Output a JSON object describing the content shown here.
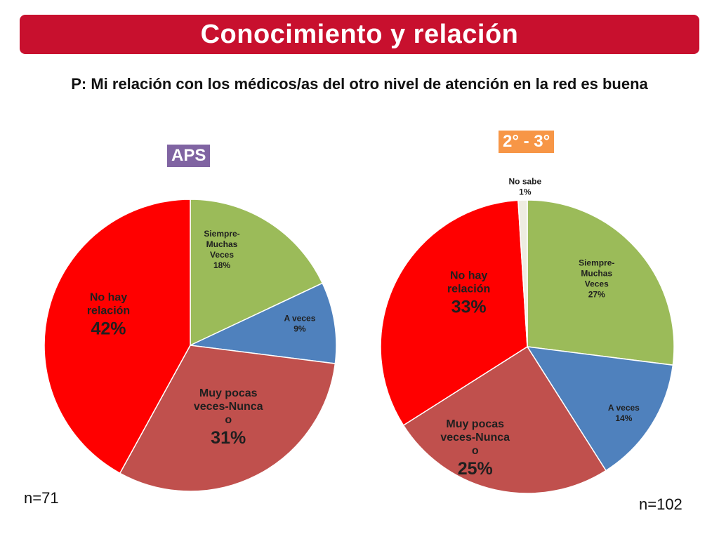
{
  "header": {
    "title": "Conocimiento y relación",
    "question": "P: Mi relación con los médicos/as del otro nivel de atención en la red es buena"
  },
  "colors": {
    "title_bar": "#c8102e",
    "siempre": "#9bbb59",
    "a_veces": "#4f81bd",
    "muy_pocas": "#c0504d",
    "no_hay": "#ff0000",
    "no_sabe": "#eeece1"
  },
  "chart_data": [
    {
      "type": "pie",
      "badge": "APS",
      "sample": "n=71",
      "slices": [
        {
          "label": [
            "Siempre-",
            "Muchas",
            "Veces"
          ],
          "value": 18,
          "pct": "18%",
          "color": "#9bbb59",
          "big": false
        },
        {
          "label": [
            "A veces"
          ],
          "value": 9,
          "pct": "9%",
          "color": "#4f81bd",
          "big": false
        },
        {
          "label": [
            "Muy pocas",
            "veces-Nunca",
            "o"
          ],
          "value": 31,
          "pct": "31%",
          "color": "#c0504d",
          "big": true
        },
        {
          "label": [
            "No hay",
            "relación"
          ],
          "value": 42,
          "pct": "42%",
          "color": "#ff0000",
          "big": true
        }
      ]
    },
    {
      "type": "pie",
      "badge": "2° - 3°",
      "sample": "n=102",
      "slices": [
        {
          "label": [
            "Siempre-",
            "Muchas",
            "Veces"
          ],
          "value": 27,
          "pct": "27%",
          "color": "#9bbb59",
          "big": false
        },
        {
          "label": [
            "A veces"
          ],
          "value": 14,
          "pct": "14%",
          "color": "#4f81bd",
          "big": false
        },
        {
          "label": [
            "Muy pocas",
            "veces-Nunca",
            "o"
          ],
          "value": 25,
          "pct": "25%",
          "color": "#c0504d",
          "big": true
        },
        {
          "label": [
            "No hay",
            "relación"
          ],
          "value": 33,
          "pct": "33%",
          "color": "#ff0000",
          "big": true
        },
        {
          "label": [
            "No sabe"
          ],
          "value": 1,
          "pct": "1%",
          "color": "#eeece1",
          "big": false
        }
      ]
    }
  ]
}
